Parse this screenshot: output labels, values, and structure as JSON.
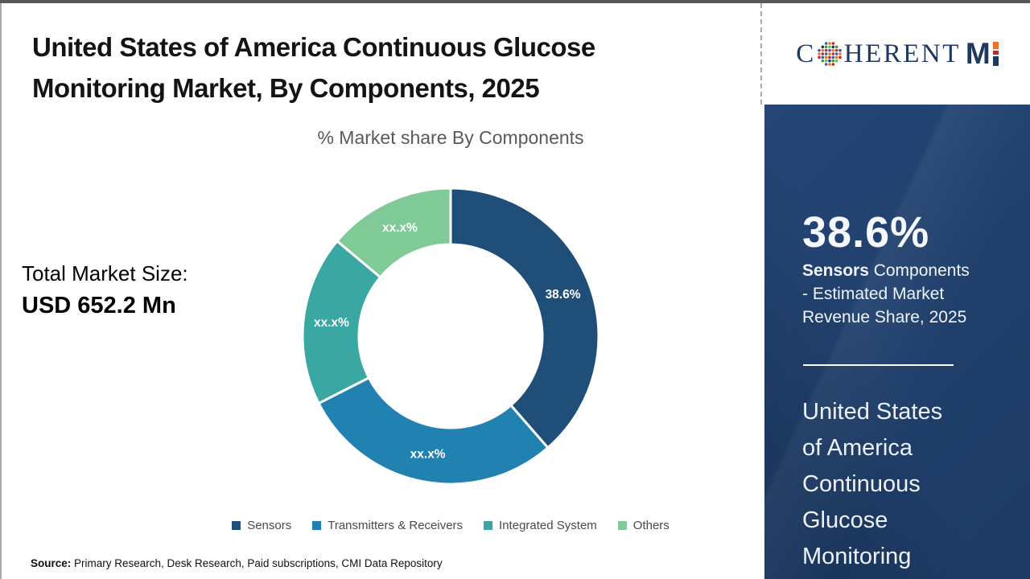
{
  "header": {
    "title_line1": "United States of America Continuous Glucose",
    "title_line2": "Monitoring Market, By Components, 2025"
  },
  "logo": {
    "part_c": "C",
    "part_herent": "HERENT",
    "part_m": "M",
    "globe_icon": "dotted-globe",
    "navy_color": "#1F3864",
    "accent_orange": "#E8702A",
    "accent_red": "#C1272D"
  },
  "chart_data": {
    "type": "donut",
    "title": "% Market share By Components",
    "start_angle_deg": 0,
    "outer_radius": 184,
    "inner_radius": 114,
    "series": [
      {
        "label": "Sensors",
        "value": 38.6,
        "display": "38.6%",
        "color": "#1F4E79"
      },
      {
        "label": "Transmitters & Receivers",
        "value": 28.9,
        "display": "xx.x%",
        "color": "#2181B1"
      },
      {
        "label": "Integrated System",
        "value": 18.6,
        "display": "xx.x%",
        "color": "#3AA7A3"
      },
      {
        "label": "Others",
        "value": 13.9,
        "display": "xx.x%",
        "color": "#7FCA96"
      }
    ],
    "legend_position": "bottom"
  },
  "stats": {
    "total_label": "Total Market Size:",
    "total_value": "USD 652.2 Mn"
  },
  "sidebar": {
    "highlight_value": "38.6%",
    "desc_bold": "Sensors",
    "desc_rest": " Components - Estimated Market Revenue Share, 2025",
    "region_title": "United States of America Continuous Glucose Monitoring",
    "bg_color": "#20406D"
  },
  "footer": {
    "source_label": "Source:",
    "source_text": " Primary Research, Desk Research, Paid subscriptions, CMI Data Repository"
  }
}
